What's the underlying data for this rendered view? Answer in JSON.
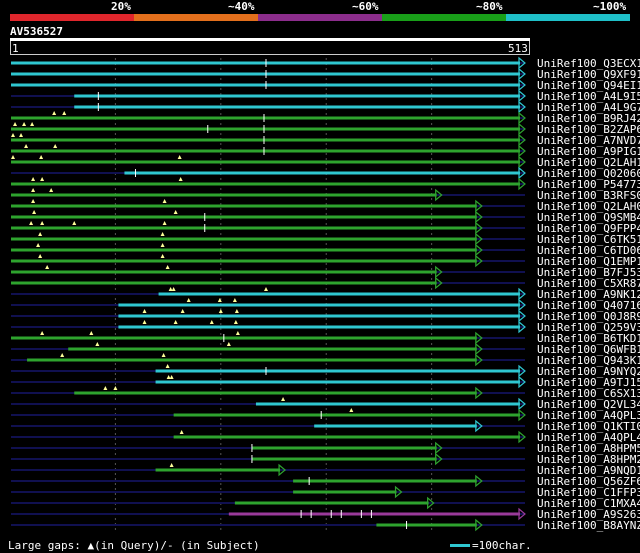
{
  "legend": {
    "segments": [
      {
        "color": "#e0262c"
      },
      {
        "color": "#e26f1c"
      },
      {
        "color": "#8c2d8c"
      },
      {
        "color": "#199f19"
      },
      {
        "color": "#1fbfc8"
      }
    ],
    "labels": [
      "20%",
      "~40%",
      "~60%",
      "~80%",
      "~100%"
    ]
  },
  "query": {
    "name": "AV536527",
    "start": "1",
    "end": "513"
  },
  "colors": {
    "cyan": "#2fc7d1",
    "green": "#2ea32e",
    "purple": "#9a3a9a",
    "navy": "#101050",
    "gap_mark": "#ffff99"
  },
  "hits": [
    {
      "name": "UniRef100_Q3ECX1",
      "color": "cyan",
      "start": 1,
      "end": 513,
      "gaps_q": [],
      "gaps_s": [
        255
      ]
    },
    {
      "name": "UniRef100_Q9XF91",
      "color": "cyan",
      "start": 1,
      "end": 513,
      "gaps_q": [],
      "gaps_s": [
        255
      ]
    },
    {
      "name": "UniRef100_Q94EI1",
      "color": "cyan",
      "start": 1,
      "end": 513,
      "gaps_q": [],
      "gaps_s": [
        255
      ]
    },
    {
      "name": "UniRef100_A4L9I5",
      "color": "cyan",
      "start": 64,
      "end": 513,
      "gaps_q": [],
      "gaps_s": [
        88
      ]
    },
    {
      "name": "UniRef100_A4L9G7",
      "color": "cyan",
      "start": 64,
      "end": 513,
      "gaps_q": [],
      "gaps_s": [
        88
      ]
    },
    {
      "name": "UniRef100_B9RJ42",
      "color": "green",
      "start": 1,
      "end": 513,
      "gaps_q": [
        44,
        54
      ],
      "gaps_s": [
        253
      ]
    },
    {
      "name": "UniRef100_B2ZAP6",
      "color": "green",
      "start": 1,
      "end": 513,
      "gaps_q": [
        5,
        14,
        22
      ],
      "gaps_s": [
        197,
        253
      ]
    },
    {
      "name": "UniRef100_A7NVD7",
      "color": "green",
      "start": 1,
      "end": 513,
      "gaps_q": [
        3,
        11
      ],
      "gaps_s": [
        253
      ]
    },
    {
      "name": "UniRef100_A9PIG1",
      "color": "green",
      "start": 1,
      "end": 513,
      "gaps_q": [
        16,
        45
      ],
      "gaps_s": [
        253
      ]
    },
    {
      "name": "UniRef100_Q2LAH1",
      "color": "green",
      "start": 1,
      "end": 513,
      "gaps_q": [
        3,
        31,
        169
      ],
      "gaps_s": []
    },
    {
      "name": "UniRef100_Q02060",
      "color": "cyan",
      "start": 114,
      "end": 513,
      "gaps_q": [],
      "gaps_s": [
        125
      ]
    },
    {
      "name": "UniRef100_P54773",
      "color": "green",
      "start": 1,
      "end": 513,
      "gaps_q": [
        23,
        32,
        170
      ],
      "gaps_s": []
    },
    {
      "name": "UniRef100_B3RFS0",
      "color": "green",
      "start": 1,
      "end": 430,
      "gaps_q": [
        23,
        41
      ],
      "gaps_s": []
    },
    {
      "name": "UniRef100_Q2LAH0",
      "color": "green",
      "start": 1,
      "end": 470,
      "gaps_q": [
        23,
        154
      ],
      "gaps_s": []
    },
    {
      "name": "UniRef100_Q9SMB4",
      "color": "green",
      "start": 1,
      "end": 470,
      "gaps_q": [
        24,
        165
      ],
      "gaps_s": [
        194
      ]
    },
    {
      "name": "UniRef100_Q9FPP4",
      "color": "green",
      "start": 1,
      "end": 470,
      "gaps_q": [
        21,
        32,
        64,
        154
      ],
      "gaps_s": [
        194
      ]
    },
    {
      "name": "UniRef100_C6TK51",
      "color": "green",
      "start": 1,
      "end": 470,
      "gaps_q": [
        30,
        152
      ],
      "gaps_s": []
    },
    {
      "name": "UniRef100_C6TD06",
      "color": "green",
      "start": 1,
      "end": 470,
      "gaps_q": [
        28,
        152
      ],
      "gaps_s": []
    },
    {
      "name": "UniRef100_Q1EMP1",
      "color": "green",
      "start": 1,
      "end": 470,
      "gaps_q": [
        30,
        152
      ],
      "gaps_s": []
    },
    {
      "name": "UniRef100_B7FJ53",
      "color": "green",
      "start": 1,
      "end": 430,
      "gaps_q": [
        37,
        157
      ],
      "gaps_s": []
    },
    {
      "name": "UniRef100_C5XR87",
      "color": "green",
      "start": 1,
      "end": 430,
      "gaps_q": [],
      "gaps_s": []
    },
    {
      "name": "UniRef100_A9NK12",
      "color": "cyan",
      "start": 148,
      "end": 513,
      "gaps_q": [
        160,
        163,
        255
      ],
      "gaps_s": []
    },
    {
      "name": "UniRef100_Q40716",
      "color": "cyan",
      "start": 108,
      "end": 513,
      "gaps_q": [
        178,
        209,
        224
      ],
      "gaps_s": []
    },
    {
      "name": "UniRef100_Q0J8R9",
      "color": "cyan",
      "start": 108,
      "end": 513,
      "gaps_q": [
        134,
        172,
        210,
        226
      ],
      "gaps_s": []
    },
    {
      "name": "UniRef100_Q259V3",
      "color": "cyan",
      "start": 108,
      "end": 513,
      "gaps_q": [
        134,
        165,
        201,
        225
      ],
      "gaps_s": []
    },
    {
      "name": "UniRef100_B6TKD1",
      "color": "green",
      "start": 1,
      "end": 470,
      "gaps_q": [
        32,
        81,
        227
      ],
      "gaps_s": [
        213
      ]
    },
    {
      "name": "UniRef100_Q6WFB1",
      "color": "green",
      "start": 58,
      "end": 470,
      "gaps_q": [
        87,
        218
      ],
      "gaps_s": []
    },
    {
      "name": "UniRef100_Q943K1",
      "color": "green",
      "start": 17,
      "end": 470,
      "gaps_q": [
        52,
        153
      ],
      "gaps_s": []
    },
    {
      "name": "UniRef100_A9NYQ2",
      "color": "cyan",
      "start": 145,
      "end": 513,
      "gaps_q": [
        157
      ],
      "gaps_s": [
        255
      ]
    },
    {
      "name": "UniRef100_A9TJ15",
      "color": "cyan",
      "start": 145,
      "end": 513,
      "gaps_q": [
        158,
        161
      ],
      "gaps_s": []
    },
    {
      "name": "UniRef100_C6SX13",
      "color": "green",
      "start": 64,
      "end": 470,
      "gaps_q": [
        95,
        105
      ],
      "gaps_s": []
    },
    {
      "name": "UniRef100_Q2VL34",
      "color": "cyan",
      "start": 245,
      "end": 513,
      "gaps_q": [
        272
      ],
      "gaps_s": []
    },
    {
      "name": "UniRef100_A4QPL3",
      "color": "green",
      "start": 163,
      "end": 513,
      "gaps_q": [
        340
      ],
      "gaps_s": [
        310
      ]
    },
    {
      "name": "UniRef100_Q1KTI0",
      "color": "cyan",
      "start": 303,
      "end": 470,
      "gaps_q": [],
      "gaps_s": []
    },
    {
      "name": "UniRef100_A4QPL4",
      "color": "green",
      "start": 163,
      "end": 513,
      "gaps_q": [
        171
      ],
      "gaps_s": []
    },
    {
      "name": "UniRef100_A8HPM5",
      "color": "green",
      "start": 241,
      "end": 430,
      "gaps_q": [],
      "gaps_s": [
        241
      ]
    },
    {
      "name": "UniRef100_A8HPM2",
      "color": "green",
      "start": 241,
      "end": 430,
      "gaps_q": [],
      "gaps_s": [
        241
      ]
    },
    {
      "name": "UniRef100_A9NQD1",
      "color": "green",
      "start": 145,
      "end": 274,
      "gaps_q": [
        161
      ],
      "gaps_s": []
    },
    {
      "name": "UniRef100_Q56ZF6",
      "color": "green",
      "start": 282,
      "end": 470,
      "gaps_q": [],
      "gaps_s": [
        298
      ]
    },
    {
      "name": "UniRef100_C1FFP3",
      "color": "green",
      "start": 282,
      "end": 390,
      "gaps_q": [],
      "gaps_s": []
    },
    {
      "name": "UniRef100_C1MXA4",
      "color": "green",
      "start": 224,
      "end": 422,
      "gaps_q": [],
      "gaps_s": []
    },
    {
      "name": "UniRef100_A9S263",
      "color": "purple",
      "start": 218,
      "end": 513,
      "gaps_q": [],
      "gaps_s": [
        290,
        300,
        320,
        330,
        350,
        360
      ]
    },
    {
      "name": "UniRef100_B8AYNZ",
      "color": "green",
      "start": 365,
      "end": 470,
      "gaps_q": [],
      "gaps_s": [
        395
      ]
    }
  ],
  "footer": {
    "gaps_text": "Large gaps: ▲(in Query)/- (in Subject)",
    "scale_text": "=100char."
  }
}
